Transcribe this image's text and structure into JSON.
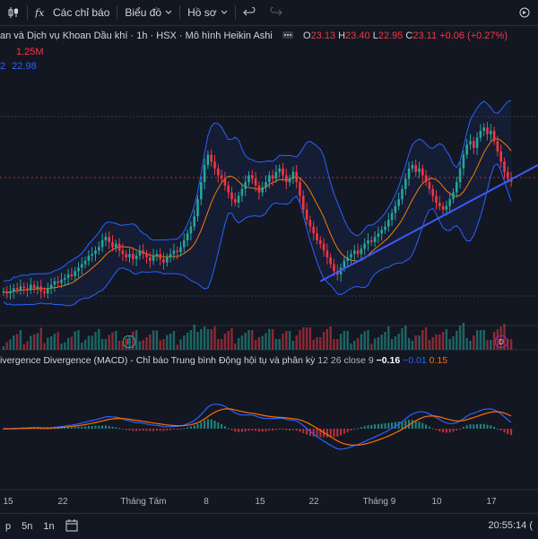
{
  "toolbar": {
    "indicators_label": "Các chỉ báo",
    "chart_label": "Biểu đồ",
    "profile_label": "Hồ sơ"
  },
  "symbol": {
    "title": "an và Dịch vụ Khoan Dầu khí · 1h · HSX · Mô hình Heikin Ashi",
    "o_label": "O",
    "o_value": "23.13",
    "h_label": "H",
    "h_value": "23.40",
    "l_label": "L",
    "l_value": "22.95",
    "c_label": "C",
    "c_value": "23.11",
    "change": "+0.06 (+0.27%)",
    "volume": "1.25M",
    "ma_prefix": "2",
    "ma_value": "22.98"
  },
  "macd": {
    "title": "ivergence Divergence (MACD) - Chỉ báo Trung bình Động hội tụ và phân kỳ",
    "params": "12 26 close 9",
    "v1": "−0.16",
    "v2": "−0.01",
    "v3": "0.15"
  },
  "x_axis": {
    "labels": [
      "15",
      "22",
      "Tháng Tám",
      "8",
      "15",
      "22",
      "Tháng 9",
      "10",
      "17"
    ]
  },
  "events": {
    "f": "F",
    "d": "D"
  },
  "bottombar": {
    "range_p": "p",
    "range_5n": "5n",
    "range_1n": "1n",
    "clock": "20:55:14 ("
  },
  "colors": {
    "up": "#26a69a",
    "down": "#f23645",
    "bb": "#2962ff",
    "ma": "#f57c00",
    "trend": "#3d5afe",
    "macd_line": "#2962ff",
    "signal": "#ff6d00"
  },
  "chart_data": {
    "type": "candlestick",
    "closes": [
      19.9,
      19.85,
      19.9,
      20.0,
      19.95,
      20.05,
      20.0,
      19.95,
      20.1,
      20.0,
      20.05,
      19.9,
      19.85,
      20.0,
      20.1,
      20.2,
      20.15,
      20.25,
      20.3,
      20.4,
      20.35,
      20.5,
      20.6,
      20.7,
      20.8,
      20.95,
      21.0,
      21.1,
      21.2,
      21.4,
      21.5,
      21.35,
      21.2,
      21.3,
      21.1,
      21.0,
      20.9,
      21.0,
      20.85,
      20.95,
      21.1,
      21.0,
      20.9,
      20.8,
      20.95,
      21.0,
      20.85,
      20.75,
      20.9,
      21.0,
      21.1,
      21.05,
      21.2,
      21.4,
      21.6,
      21.8,
      22.1,
      22.6,
      23.1,
      23.6,
      23.9,
      23.7,
      23.5,
      23.3,
      23.2,
      23.0,
      22.8,
      22.6,
      22.5,
      22.7,
      22.9,
      23.1,
      23.3,
      23.2,
      23.0,
      22.8,
      22.95,
      23.1,
      23.3,
      23.2,
      23.4,
      23.5,
      23.3,
      23.1,
      23.2,
      23.4,
      23.1,
      22.7,
      22.3,
      22.0,
      21.8,
      21.6,
      21.4,
      21.3,
      21.1,
      20.9,
      20.7,
      20.5,
      20.4,
      20.6,
      20.8,
      20.9,
      21.0,
      21.1,
      21.0,
      21.15,
      21.3,
      21.4,
      21.35,
      21.5,
      21.6,
      21.7,
      21.8,
      22.0,
      22.2,
      22.4,
      22.6,
      22.9,
      23.2,
      23.5,
      23.6,
      23.4,
      23.5,
      23.3,
      23.1,
      22.9,
      22.7,
      22.5,
      22.4,
      22.3,
      22.4,
      22.6,
      22.8,
      23.1,
      23.5,
      23.9,
      24.2,
      24.3,
      24.1,
      24.4,
      24.6,
      24.7,
      24.5,
      24.6,
      24.3,
      24.0,
      23.7,
      23.4,
      23.2,
      23.11
    ],
    "volume_label": "1.25M"
  }
}
